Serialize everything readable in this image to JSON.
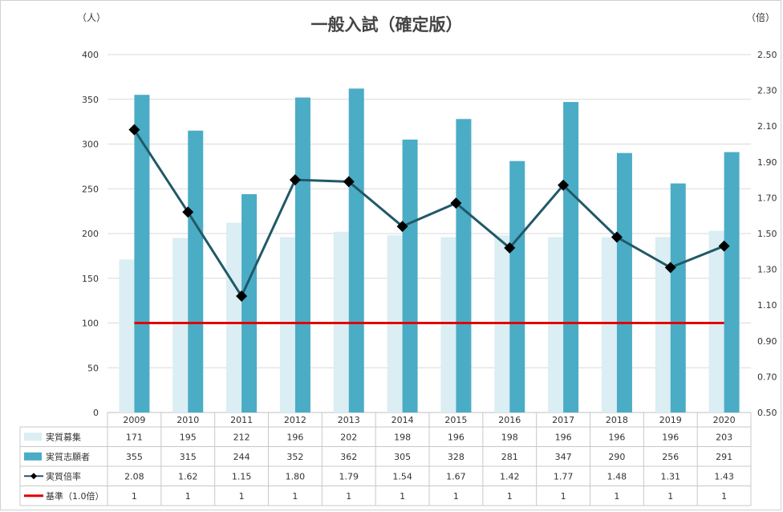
{
  "chart_data": {
    "type": "bar",
    "title": "一般入試（確定版）",
    "left_axis_unit": "（人）",
    "right_axis_unit": "（倍）",
    "categories": [
      "2009",
      "2010",
      "2011",
      "2012",
      "2013",
      "2014",
      "2015",
      "2016",
      "2017",
      "2018",
      "2019",
      "2020"
    ],
    "left_axis": {
      "ylim": [
        0,
        400
      ],
      "ticks": [
        "0",
        "50",
        "100",
        "150",
        "200",
        "250",
        "300",
        "350",
        "400"
      ]
    },
    "right_axis": {
      "ylim": [
        0.5,
        2.5
      ],
      "ticks": [
        "0.50",
        "0.70",
        "0.90",
        "1.10",
        "1.30",
        "1.50",
        "1.70",
        "1.90",
        "2.10",
        "2.30",
        "2.50"
      ]
    },
    "grid": true,
    "legend": "data-table",
    "series": [
      {
        "name": "実質募集",
        "kind": "bar",
        "axis": "left",
        "color": "#daeef3",
        "values": [
          171,
          195,
          212,
          196,
          202,
          198,
          196,
          198,
          196,
          196,
          196,
          203
        ],
        "labels": [
          "171",
          "195",
          "212",
          "196",
          "202",
          "198",
          "196",
          "198",
          "196",
          "196",
          "196",
          "203"
        ]
      },
      {
        "name": "実質志願者",
        "kind": "bar",
        "axis": "left",
        "color": "#4bacc6",
        "values": [
          355,
          315,
          244,
          352,
          362,
          305,
          328,
          281,
          347,
          290,
          256,
          291
        ],
        "labels": [
          "355",
          "315",
          "244",
          "352",
          "362",
          "305",
          "328",
          "281",
          "347",
          "290",
          "256",
          "291"
        ]
      },
      {
        "name": "実質倍率",
        "kind": "line",
        "axis": "right",
        "color": "#215968",
        "marker_color": "#000000",
        "values": [
          2.08,
          1.62,
          1.15,
          1.8,
          1.79,
          1.54,
          1.67,
          1.42,
          1.77,
          1.48,
          1.31,
          1.43
        ],
        "labels": [
          "2.08",
          "1.62",
          "1.15",
          "1.80",
          "1.79",
          "1.54",
          "1.67",
          "1.42",
          "1.77",
          "1.48",
          "1.31",
          "1.43"
        ]
      },
      {
        "name": "基準（1.0倍）",
        "kind": "line",
        "axis": "right",
        "color": "#e00000",
        "values": [
          1,
          1,
          1,
          1,
          1,
          1,
          1,
          1,
          1,
          1,
          1,
          1
        ],
        "labels": [
          "1",
          "1",
          "1",
          "1",
          "1",
          "1",
          "1",
          "1",
          "1",
          "1",
          "1",
          "1"
        ]
      }
    ]
  }
}
